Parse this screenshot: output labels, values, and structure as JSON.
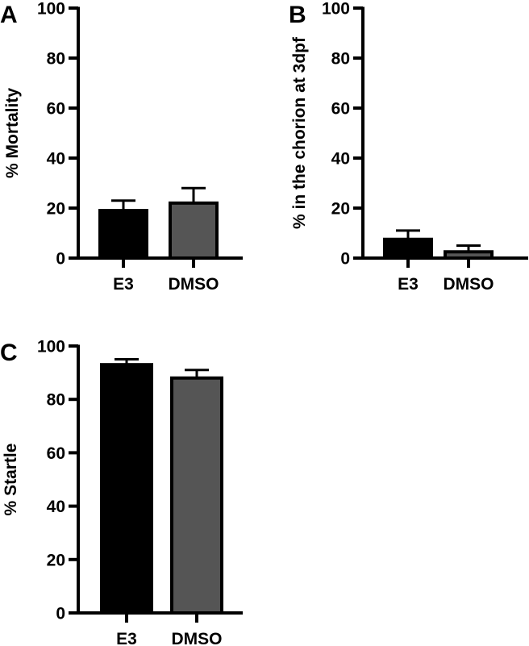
{
  "chart_data": [
    {
      "panel": "A",
      "type": "bar",
      "categories": [
        "E3",
        "DMSO"
      ],
      "values": [
        19,
        22
      ],
      "errors": [
        4,
        6
      ],
      "colors": [
        "#000000",
        "#555555"
      ],
      "ylabel": "% Mortality",
      "ylim": [
        0,
        100
      ],
      "yticks": [
        "0",
        "20",
        "40",
        "60",
        "80",
        "100"
      ],
      "grid": false
    },
    {
      "panel": "B",
      "type": "bar",
      "categories": [
        "E3",
        "DMSO"
      ],
      "values": [
        7.5,
        2.5
      ],
      "errors": [
        3.5,
        2.5
      ],
      "colors": [
        "#000000",
        "#555555"
      ],
      "ylabel": "% in the chorion at 3dpf",
      "ylim": [
        0,
        100
      ],
      "yticks": [
        "0",
        "20",
        "40",
        "60",
        "80",
        "100"
      ],
      "grid": false
    },
    {
      "panel": "C",
      "type": "bar",
      "categories": [
        "E3",
        "DMSO"
      ],
      "values": [
        93,
        88
      ],
      "errors": [
        2,
        3
      ],
      "colors": [
        "#000000",
        "#555555"
      ],
      "ylabel": "% Startle",
      "ylim": [
        0,
        100
      ],
      "yticks": [
        "0",
        "20",
        "40",
        "60",
        "80",
        "100"
      ],
      "grid": false
    }
  ]
}
